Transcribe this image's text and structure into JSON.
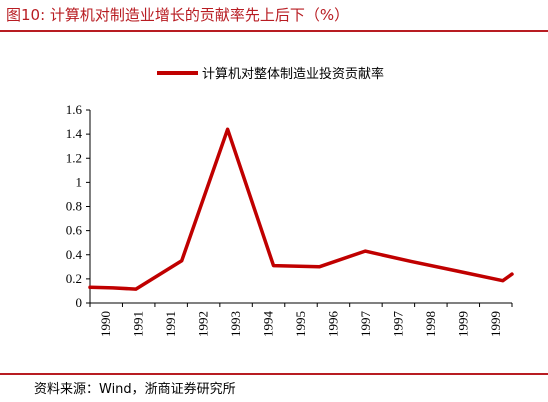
{
  "header": {
    "title": "图10:  计算机对制造业增长的贡献率先上后下（%）"
  },
  "source": "资料来源：Wind，浙商证券研究所",
  "colors": {
    "accent": "#b81c22",
    "series": "#c00000"
  },
  "chart_data": {
    "type": "line",
    "title": "",
    "xlabel": "",
    "ylabel": "",
    "categories": [
      "1990",
      "1991",
      "1991",
      "1992",
      "1993",
      "1994",
      "1995",
      "1996",
      "1997",
      "1997",
      "1998",
      "1999",
      "1999"
    ],
    "x": [
      1990.0,
      1990.5,
      1991.0,
      1992.0,
      1993.0,
      1994.0,
      1995.0,
      1996.0,
      1997.0,
      1998.0,
      1999.0,
      1999.2
    ],
    "series": [
      {
        "name": "计算机对整体制造业投资贡献率",
        "values": [
          0.13,
          0.125,
          0.115,
          0.35,
          1.44,
          0.31,
          0.3,
          0.43,
          0.345,
          0.265,
          0.185,
          0.24
        ]
      }
    ],
    "ylim": [
      0,
      1.6
    ],
    "yticks": [
      "0",
      "0.2",
      "0.4",
      "0.6",
      "0.8",
      "1",
      "1.2",
      "1.4",
      "1.6"
    ],
    "legend": "top-center",
    "grid": false
  }
}
